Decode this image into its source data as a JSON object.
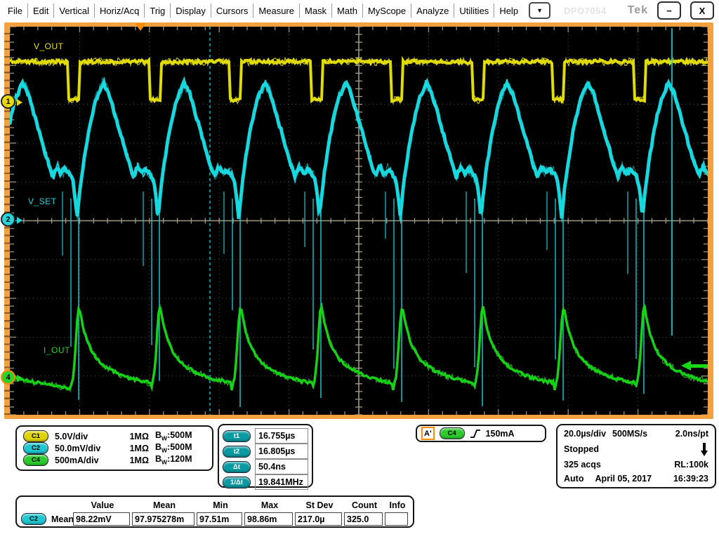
{
  "menu": {
    "items": [
      "File",
      "Edit",
      "Vertical",
      "Horiz/Acq",
      "Trig",
      "Display",
      "Cursors",
      "Measure",
      "Mask",
      "Math",
      "MyScope",
      "Analyze",
      "Utilities",
      "Help"
    ],
    "overflow": "▼",
    "model": "DPO7054",
    "logo": "Tek",
    "minimize": "−",
    "close": "X"
  },
  "scope": {
    "labels": {
      "c1": "V_OUT",
      "c2": "V_SET",
      "c4": "I_OUT"
    },
    "badges": [
      "1",
      "2",
      "4"
    ],
    "colors": {
      "c1": "#e8e400",
      "c2": "#17dde4",
      "c4": "#17d917",
      "badge1": "#e8d80a",
      "badge2": "#28d4dc",
      "badge4": "#2ad22a",
      "trigger_orange": "#ff8c00",
      "frame": "#f2a13e",
      "cursor": "#00cfcf"
    },
    "waveforms": [
      {
        "channel": "1",
        "label": "V_OUT",
        "shape": "pulse-train, high with short low pulses"
      },
      {
        "channel": "2",
        "label": "V_SET",
        "shape": "noisy sawtooth with sharp periodic dips and spikes"
      },
      {
        "channel": "4",
        "label": "I_OUT",
        "shape": "periodic sharp rise with exponential decay"
      }
    ]
  },
  "panels": {
    "channels": {
      "bw_prefix": "B",
      "bw_sub": "W",
      "rows": [
        {
          "id": "C1",
          "color": "#e0d400",
          "scale": "5.0V/div",
          "impedance": "1MΩ",
          "bandwidth": ":500M"
        },
        {
          "id": "C2",
          "color": "#1ec8d2",
          "scale": "50.0mV/div",
          "impedance": "1MΩ",
          "bandwidth": ":500M"
        },
        {
          "id": "C4",
          "color": "#2ccc2c",
          "scale": "500mA/div",
          "impedance": "1MΩ",
          "bandwidth": ":120M"
        }
      ]
    },
    "cursors": {
      "pill_color": "#0a9aa2",
      "rows": [
        {
          "label": "t1",
          "value": "16.755µs"
        },
        {
          "label": "t2",
          "value": "16.805µs"
        },
        {
          "label": "Δt",
          "value": "50.4ns"
        },
        {
          "label": "1/Δt",
          "value": "19.841MHz"
        }
      ]
    },
    "trigger": {
      "marker": "A'",
      "source": "C4",
      "source_color": "#2ccc2c",
      "level": "150mA"
    },
    "acquisition": {
      "timebase": "20.0µs/div",
      "sample_rate": "500MS/s",
      "resolution": "2.0ns/pt",
      "status": "Stopped",
      "acquisitions": "325 acqs",
      "record_length": "RL:100k",
      "mode": "Auto",
      "date": "April 05, 2017",
      "time": "16:39:23"
    },
    "measurements": {
      "headers": [
        "Value",
        "Mean",
        "Min",
        "Max",
        "St Dev",
        "Count",
        "Info"
      ],
      "row": {
        "source": "C2",
        "source_color": "#1ec8d2",
        "name": "Mean",
        "value": "98.22mV",
        "mean": "97.975278m",
        "min": "97.51m",
        "max": "98.86m",
        "stdev": "217.0µ",
        "count": "325.0",
        "info": ""
      }
    }
  }
}
